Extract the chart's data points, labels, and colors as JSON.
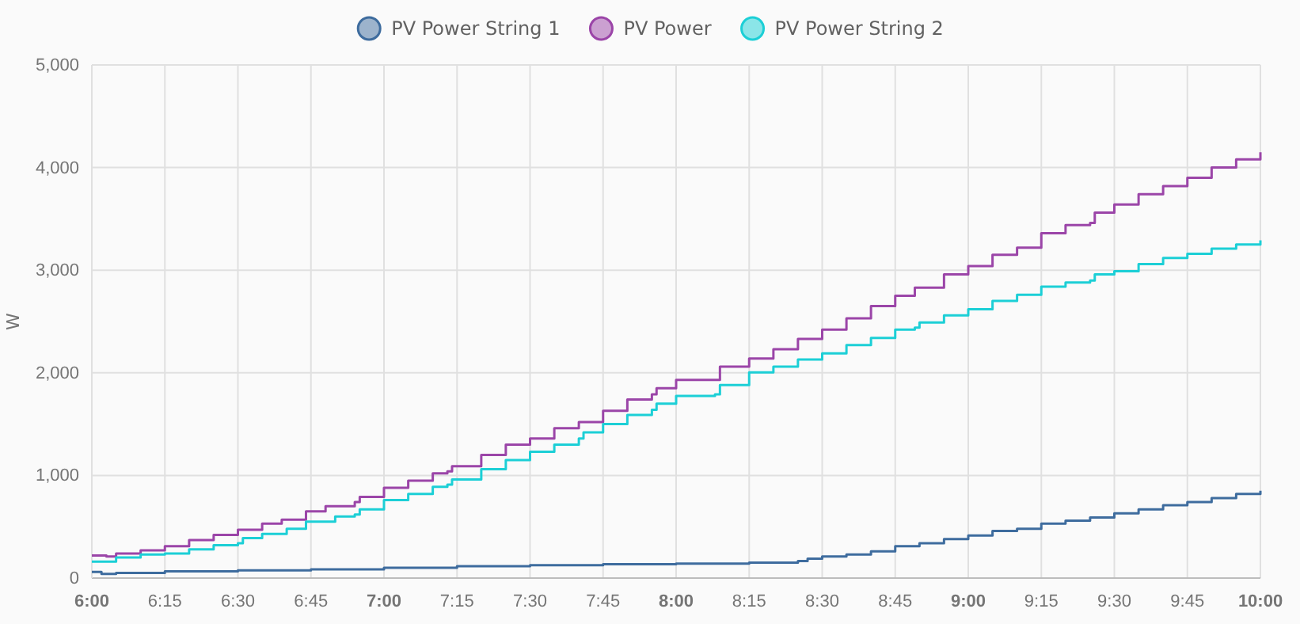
{
  "chart_data": {
    "type": "step",
    "ylabel": "W",
    "xlim": [
      6,
      10
    ],
    "ylim": [
      0,
      5000
    ],
    "legend": "top",
    "grid": true,
    "xticks": [
      {
        "value": 6,
        "label": "6:00"
      },
      {
        "value": 6.25,
        "label": "6:15"
      },
      {
        "value": 6.5,
        "label": "6:30"
      },
      {
        "value": 6.75,
        "label": "6:45"
      },
      {
        "value": 7,
        "label": "7:00"
      },
      {
        "value": 7.25,
        "label": "7:15"
      },
      {
        "value": 7.5,
        "label": "7:30"
      },
      {
        "value": 7.75,
        "label": "7:45"
      },
      {
        "value": 8,
        "label": "8:00"
      },
      {
        "value": 8.25,
        "label": "8:15"
      },
      {
        "value": 8.5,
        "label": "8:30"
      },
      {
        "value": 8.75,
        "label": "8:45"
      },
      {
        "value": 9,
        "label": "9:00"
      },
      {
        "value": 9.25,
        "label": "9:15"
      },
      {
        "value": 9.5,
        "label": "9:30"
      },
      {
        "value": 9.75,
        "label": "9:45"
      },
      {
        "value": 10,
        "label": "10:00"
      }
    ],
    "yticks": [
      0,
      {
        "value": 1000,
        "label": "1,000"
      },
      {
        "value": 2000,
        "label": "2,000"
      },
      {
        "value": 3000,
        "label": "3,000"
      },
      {
        "value": 4000,
        "label": "4,000"
      },
      {
        "value": 5000,
        "label": "5,000"
      }
    ],
    "series": [
      {
        "name": "PV Power String 1",
        "color": "#3e6c9e",
        "x": [
          6.0,
          6.033,
          6.083,
          6.25,
          6.5,
          6.75,
          7.0,
          7.25,
          7.5,
          7.75,
          8.0,
          8.25,
          8.417,
          8.45,
          8.5,
          8.583,
          8.667,
          8.75,
          8.833,
          8.917,
          9.0,
          9.083,
          9.167,
          9.25,
          9.333,
          9.417,
          9.5,
          9.583,
          9.667,
          9.75,
          9.833,
          9.917,
          10.0
        ],
        "values": [
          60,
          40,
          50,
          65,
          75,
          85,
          100,
          115,
          125,
          135,
          140,
          150,
          165,
          190,
          210,
          230,
          260,
          310,
          340,
          380,
          415,
          460,
          480,
          530,
          560,
          590,
          630,
          670,
          710,
          740,
          780,
          820,
          850
        ]
      },
      {
        "name": "PV Power",
        "color": "#9b45a8",
        "x": [
          6.0,
          6.05,
          6.083,
          6.167,
          6.25,
          6.333,
          6.417,
          6.5,
          6.583,
          6.65,
          6.733,
          6.8,
          6.9,
          6.917,
          7.0,
          7.083,
          7.167,
          7.217,
          7.233,
          7.333,
          7.417,
          7.5,
          7.583,
          7.667,
          7.75,
          7.833,
          7.917,
          7.933,
          8.0,
          8.133,
          8.15,
          8.25,
          8.333,
          8.417,
          8.5,
          8.583,
          8.667,
          8.75,
          8.8,
          8.817,
          8.917,
          9.0,
          9.083,
          9.167,
          9.233,
          9.25,
          9.333,
          9.417,
          9.433,
          9.5,
          9.583,
          9.667,
          9.75,
          9.817,
          9.833,
          9.917,
          10.0
        ],
        "values": [
          220,
          210,
          240,
          270,
          310,
          370,
          420,
          470,
          530,
          570,
          650,
          700,
          740,
          790,
          880,
          950,
          1020,
          1040,
          1090,
          1200,
          1300,
          1360,
          1460,
          1520,
          1630,
          1740,
          1790,
          1850,
          1930,
          1930,
          2060,
          2140,
          2230,
          2330,
          2420,
          2530,
          2650,
          2750,
          2750,
          2830,
          2960,
          3040,
          3150,
          3220,
          3220,
          3360,
          3440,
          3460,
          3560,
          3640,
          3740,
          3820,
          3900,
          3900,
          4000,
          4080,
          4150
        ]
      },
      {
        "name": "PV Power String 2",
        "color": "#1ccfd6",
        "x": [
          6.0,
          6.083,
          6.167,
          6.25,
          6.333,
          6.417,
          6.5,
          6.517,
          6.583,
          6.667,
          6.717,
          6.733,
          6.833,
          6.9,
          6.917,
          7.0,
          7.083,
          7.167,
          7.217,
          7.233,
          7.333,
          7.417,
          7.5,
          7.583,
          7.667,
          7.683,
          7.75,
          7.833,
          7.917,
          7.933,
          8.0,
          8.133,
          8.15,
          8.25,
          8.333,
          8.417,
          8.5,
          8.583,
          8.667,
          8.75,
          8.817,
          8.833,
          8.917,
          9.0,
          9.083,
          9.167,
          9.233,
          9.25,
          9.333,
          9.417,
          9.433,
          9.5,
          9.583,
          9.667,
          9.75,
          9.817,
          9.833,
          9.917,
          10.0
        ],
        "values": [
          160,
          200,
          230,
          240,
          280,
          320,
          340,
          390,
          430,
          480,
          480,
          550,
          600,
          620,
          670,
          760,
          820,
          890,
          910,
          960,
          1060,
          1150,
          1230,
          1300,
          1360,
          1420,
          1500,
          1590,
          1640,
          1700,
          1775,
          1790,
          1880,
          2005,
          2060,
          2130,
          2190,
          2270,
          2340,
          2420,
          2440,
          2490,
          2560,
          2620,
          2700,
          2760,
          2760,
          2840,
          2880,
          2900,
          2960,
          2990,
          3060,
          3120,
          3160,
          3160,
          3210,
          3250,
          3290
        ]
      }
    ]
  }
}
